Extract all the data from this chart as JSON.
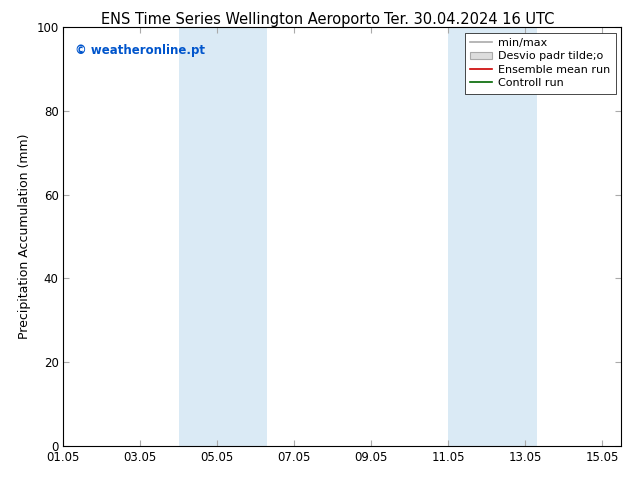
{
  "title_left": "ENS Time Series Wellington Aeroporto",
  "title_right": "Ter. 30.04.2024 16 UTC",
  "ylabel": "Precipitation Accumulation (mm)",
  "ylim": [
    0,
    100
  ],
  "xlim": [
    0.0,
    14.5
  ],
  "xtick_positions": [
    0,
    2,
    4,
    6,
    8,
    10,
    12,
    14
  ],
  "xtick_labels": [
    "01.05",
    "03.05",
    "05.05",
    "07.05",
    "09.05",
    "11.05",
    "13.05",
    "15.05"
  ],
  "ytick_positions": [
    0,
    20,
    40,
    60,
    80,
    100
  ],
  "shade_bands": [
    {
      "x_start": 3.0,
      "x_end": 5.3,
      "color": "#daeaf5"
    },
    {
      "x_start": 10.0,
      "x_end": 12.3,
      "color": "#daeaf5"
    }
  ],
  "watermark": "© weatheronline.pt",
  "watermark_color": "#0055cc",
  "legend_labels": [
    "min/max",
    "Desvio padr tilde;o",
    "Ensemble mean run",
    "Controll run"
  ],
  "bg_color": "#ffffff",
  "plot_bg_color": "#ffffff",
  "title_fontsize": 10.5,
  "axis_label_fontsize": 9,
  "tick_fontsize": 8.5,
  "legend_fontsize": 8
}
